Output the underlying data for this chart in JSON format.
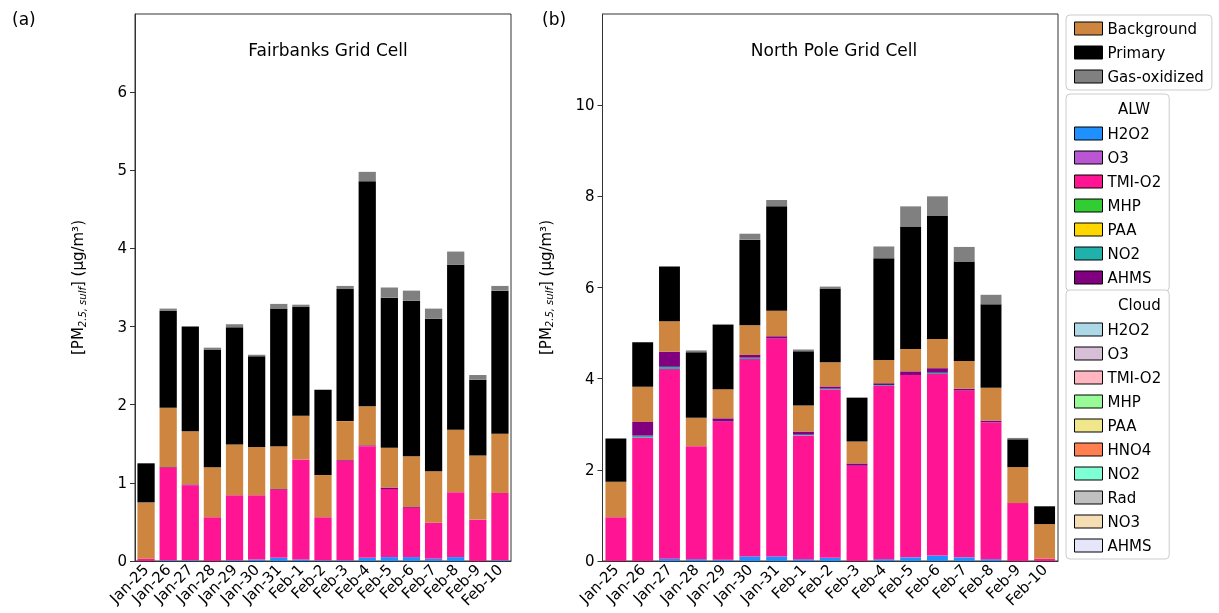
{
  "chart_data": [
    {
      "type": "bar",
      "stacked": true,
      "title": "Fairbanks Grid Cell",
      "ylabel": "[PM$_{2.5, sulf}$] (µg/m³)",
      "annotations": [
        "(a)"
      ],
      "categories": [
        "Jan-25",
        "Jan-26",
        "Jan-27",
        "Jan-28",
        "Jan-29",
        "Jan-30",
        "Jan-31",
        "Feb-1",
        "Feb-2",
        "Feb-3",
        "Feb-4",
        "Feb-5",
        "Feb-6",
        "Feb-7",
        "Feb-8",
        "Feb-9",
        "Feb-10"
      ],
      "ylim": [
        0,
        7
      ],
      "yticks": [
        0,
        1,
        2,
        3,
        4,
        5,
        6
      ],
      "grid": false,
      "series": [
        {
          "color": "#1e90ff",
          "values": [
            0,
            0.01,
            0.01,
            0,
            0.01,
            0.02,
            0.04,
            0.02,
            0.01,
            0.01,
            0.04,
            0.05,
            0.05,
            0.03,
            0.05,
            0,
            0.01
          ]
        },
        {
          "color": "#ff1493",
          "values": [
            0.03,
            1.18,
            0.96,
            0.56,
            0.83,
            0.82,
            0.87,
            1.28,
            0.55,
            1.27,
            1.43,
            0.87,
            0.63,
            0.46,
            0.83,
            0.53,
            0.86
          ]
        },
        {
          "color": "#800080",
          "values": [
            0,
            0.01,
            0.01,
            0,
            0,
            0,
            0.01,
            0,
            0,
            0.01,
            0.01,
            0.02,
            0.01,
            0,
            0,
            0,
            0
          ]
        },
        {
          "color": "#cd853f",
          "values": [
            0.72,
            0.76,
            0.68,
            0.64,
            0.65,
            0.62,
            0.55,
            0.56,
            0.54,
            0.5,
            0.5,
            0.51,
            0.65,
            0.66,
            0.8,
            0.82,
            0.76
          ]
        },
        {
          "color": "#000000",
          "values": [
            0.5,
            1.24,
            1.34,
            1.5,
            1.5,
            1.16,
            1.76,
            1.39,
            1.09,
            1.69,
            2.88,
            1.92,
            1.99,
            1.95,
            2.11,
            0.97,
            1.83
          ]
        },
        {
          "color": "#808080",
          "values": [
            0,
            0.03,
            0,
            0.03,
            0.04,
            0.02,
            0.06,
            0.03,
            0,
            0.04,
            0.12,
            0.13,
            0.13,
            0.13,
            0.17,
            0.06,
            0.06
          ]
        }
      ]
    },
    {
      "type": "bar",
      "stacked": true,
      "title": "North Pole Grid Cell",
      "ylabel": "[PM$_{2.5, sulf}$] (µg/m³)",
      "annotations": [
        "(b)",
        "ALW",
        "Cloud"
      ],
      "legend": "right",
      "categories": [
        "Jan-25",
        "Jan-26",
        "Jan-27",
        "Jan-28",
        "Jan-29",
        "Jan-30",
        "Jan-31",
        "Feb-1",
        "Feb-2",
        "Feb-3",
        "Feb-4",
        "Feb-5",
        "Feb-6",
        "Feb-7",
        "Feb-8",
        "Feb-9",
        "Feb-10"
      ],
      "ylim": [
        0,
        12
      ],
      "yticks": [
        0,
        2,
        4,
        6,
        8,
        10
      ],
      "grid": false,
      "series": [
        {
          "name": "H2O2",
          "color": "#1e90ff",
          "values": [
            0,
            0,
            0.05,
            0.04,
            0.03,
            0.1,
            0.1,
            0.04,
            0.07,
            0,
            0.04,
            0.08,
            0.12,
            0.08,
            0.04,
            0,
            0
          ]
        },
        {
          "name": "O3",
          "color": "#ba55d3",
          "values": [
            0,
            0,
            0,
            0,
            0,
            0,
            0,
            0,
            0,
            0,
            0,
            0,
            0,
            0,
            0,
            0,
            0
          ]
        },
        {
          "name": "TMI-O2",
          "color": "#ff1493",
          "values": [
            0.96,
            2.71,
            4.16,
            2.48,
            3.03,
            4.33,
            4.78,
            2.71,
            3.69,
            2.09,
            3.8,
            4.0,
            3.98,
            3.66,
            3.0,
            1.27,
            0.05
          ]
        },
        {
          "name": "MHP",
          "color": "#32cd32",
          "values": [
            0,
            0,
            0,
            0,
            0,
            0,
            0,
            0,
            0,
            0,
            0,
            0,
            0,
            0,
            0,
            0,
            0
          ]
        },
        {
          "name": "PAA",
          "color": "#ffd700",
          "values": [
            0,
            0,
            0,
            0,
            0,
            0,
            0,
            0,
            0,
            0,
            0,
            0,
            0,
            0,
            0,
            0,
            0
          ]
        },
        {
          "name": "NO2",
          "color": "#20b2aa",
          "values": [
            0,
            0.04,
            0.05,
            0,
            0,
            0.03,
            0,
            0.02,
            0.02,
            0,
            0.02,
            0,
            0.03,
            0,
            0,
            0,
            0
          ]
        },
        {
          "name": "AHMS",
          "color": "#800080",
          "values": [
            0,
            0.3,
            0.33,
            0,
            0.07,
            0.06,
            0.05,
            0.07,
            0.05,
            0.05,
            0.04,
            0.08,
            0.1,
            0.04,
            0.04,
            0,
            0
          ]
        },
        {
          "name": "H2O2",
          "color": "#add8e6",
          "values": [
            0,
            0,
            0,
            0,
            0,
            0,
            0,
            0,
            0,
            0,
            0,
            0,
            0,
            0,
            0,
            0,
            0
          ]
        },
        {
          "name": "O3",
          "color": "#d8bfd8",
          "values": [
            0,
            0,
            0,
            0,
            0,
            0,
            0,
            0,
            0,
            0,
            0,
            0,
            0,
            0,
            0,
            0,
            0
          ]
        },
        {
          "name": "TMI-O2",
          "color": "#ffb6c1",
          "values": [
            0,
            0,
            0,
            0,
            0,
            0,
            0,
            0,
            0,
            0,
            0,
            0,
            0,
            0,
            0,
            0,
            0
          ]
        },
        {
          "name": "MHP",
          "color": "#98fb98",
          "values": [
            0,
            0,
            0,
            0,
            0,
            0,
            0,
            0,
            0,
            0,
            0,
            0,
            0,
            0,
            0,
            0,
            0
          ]
        },
        {
          "name": "PAA",
          "color": "#f0e68c",
          "values": [
            0,
            0,
            0,
            0,
            0,
            0,
            0,
            0,
            0,
            0,
            0,
            0,
            0,
            0,
            0,
            0,
            0
          ]
        },
        {
          "name": "HNO4",
          "color": "#ff7f50",
          "values": [
            0,
            0,
            0,
            0,
            0,
            0,
            0,
            0,
            0,
            0,
            0,
            0,
            0,
            0,
            0,
            0,
            0
          ]
        },
        {
          "name": "NO2",
          "color": "#7fffd4",
          "values": [
            0,
            0,
            0,
            0,
            0,
            0,
            0,
            0,
            0,
            0,
            0,
            0,
            0,
            0,
            0,
            0,
            0
          ]
        },
        {
          "name": "Rad",
          "color": "#c0c0c0",
          "values": [
            0,
            0,
            0,
            0,
            0,
            0,
            0,
            0,
            0,
            0,
            0,
            0,
            0,
            0,
            0,
            0,
            0
          ]
        },
        {
          "name": "NO3",
          "color": "#f5deb3",
          "values": [
            0,
            0,
            0,
            0,
            0,
            0,
            0,
            0,
            0,
            0,
            0,
            0,
            0,
            0,
            0,
            0,
            0
          ]
        },
        {
          "name": "AHMS",
          "color": "#e6e6fa",
          "values": [
            0,
            0,
            0,
            0,
            0,
            0,
            0,
            0,
            0,
            0,
            0,
            0,
            0,
            0,
            0,
            0,
            0
          ]
        },
        {
          "name": "Background",
          "color": "#cd853f",
          "values": [
            0.78,
            0.77,
            0.67,
            0.62,
            0.64,
            0.65,
            0.56,
            0.57,
            0.53,
            0.48,
            0.51,
            0.49,
            0.64,
            0.61,
            0.72,
            0.79,
            0.76
          ]
        },
        {
          "name": "Primary",
          "color": "#000000",
          "values": [
            0.95,
            0.98,
            1.2,
            1.44,
            1.41,
            1.88,
            2.29,
            1.19,
            1.62,
            0.96,
            2.23,
            2.69,
            2.71,
            2.18,
            1.83,
            0.61,
            0.39
          ]
        },
        {
          "name": "Gas-oxidized",
          "color": "#808080",
          "values": [
            0,
            0,
            0,
            0.04,
            0.02,
            0.13,
            0.14,
            0.04,
            0.04,
            0.01,
            0.26,
            0.44,
            0.42,
            0.32,
            0.21,
            0.03,
            0
          ]
        }
      ]
    }
  ]
}
